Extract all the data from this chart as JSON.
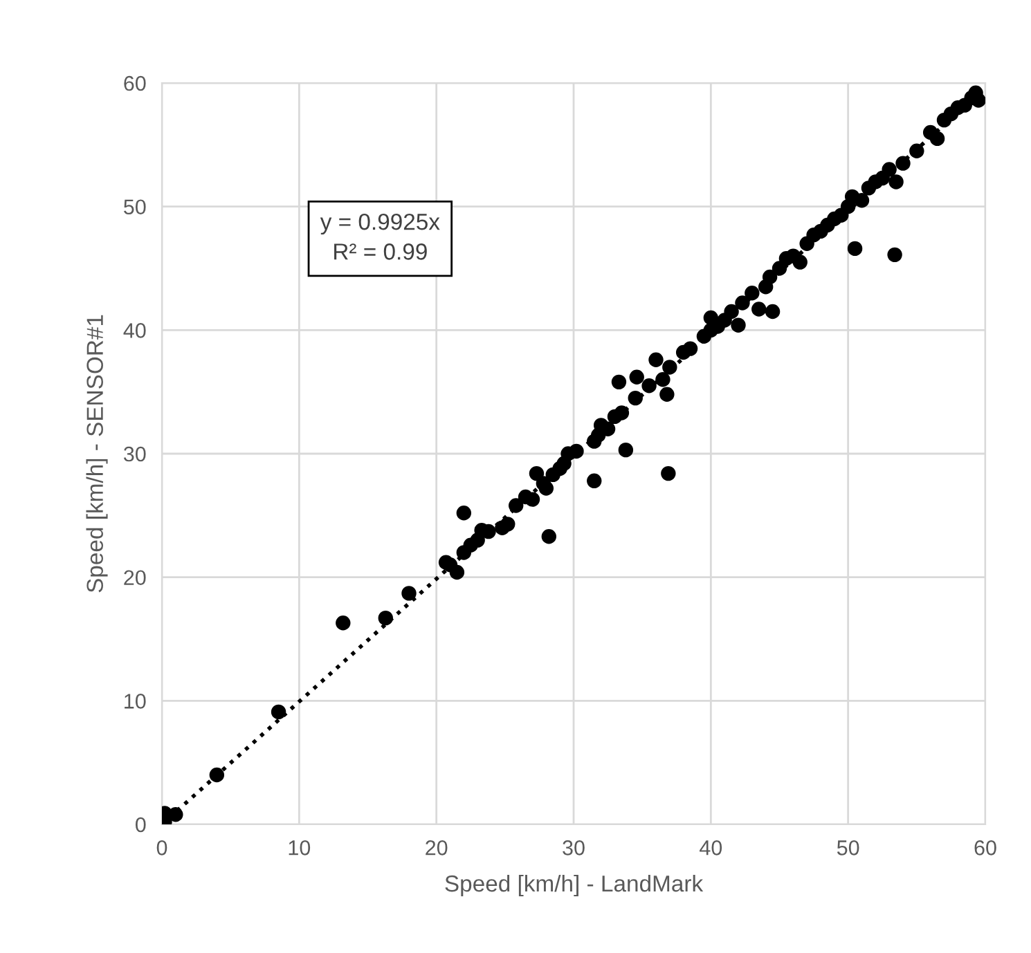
{
  "chart_data": {
    "type": "scatter",
    "xlabel": "Speed [km/h] - LandMark",
    "ylabel": "Speed [km/h] - SENSOR#1",
    "xlim": [
      0,
      60
    ],
    "ylim": [
      0,
      60
    ],
    "xticks": [
      0,
      10,
      20,
      30,
      40,
      50,
      60
    ],
    "yticks": [
      0,
      10,
      20,
      30,
      40,
      50,
      60
    ],
    "grid": true,
    "marker": "circle",
    "annotations": [
      "y = 0.9925x\nR² = 0.99"
    ],
    "series": [
      {
        "color": "#000000",
        "x": [
          0.2,
          0.2,
          1,
          4,
          8.5,
          13.2,
          16.3,
          18,
          20.7,
          21,
          21.5,
          22,
          22,
          22.5,
          23,
          23.3,
          23.8,
          24.8,
          25.2,
          25.8,
          26.5,
          27,
          27.3,
          27.8,
          28,
          28.2,
          28.5,
          29,
          29.3,
          29.6,
          30.2,
          31.5,
          31.5,
          31.8,
          32,
          32.5,
          33,
          33.3,
          33.5,
          33.8,
          34.5,
          34.6,
          35.5,
          36,
          36.5,
          36.8,
          36.9,
          37,
          38,
          38.5,
          39.5,
          40,
          40,
          40.5,
          41,
          41.5,
          42,
          42.3,
          43,
          43.5,
          44,
          44.5,
          44.3,
          45,
          45.5,
          46,
          46.5,
          47,
          47.5,
          48,
          48.5,
          49,
          49.5,
          50,
          50.3,
          50.5,
          51,
          51.5,
          52,
          52.5,
          53,
          53.4,
          53.5,
          54,
          55,
          56,
          56.5,
          57,
          57.5,
          58,
          58.5,
          59,
          59.3,
          59.5
        ],
        "values": [
          0.2,
          0.9,
          0.8,
          4,
          9.1,
          16.3,
          16.7,
          18.7,
          21.2,
          21,
          20.4,
          25.2,
          22,
          22.6,
          23,
          23.8,
          23.7,
          24,
          24.3,
          25.8,
          26.5,
          26.3,
          28.4,
          27.6,
          27.2,
          23.3,
          28.3,
          28.8,
          29.2,
          30,
          30.2,
          31,
          27.8,
          31.5,
          32.3,
          32,
          33,
          35.8,
          33.3,
          30.3,
          34.5,
          36.2,
          35.5,
          37.6,
          36,
          34.8,
          28.4,
          37,
          38.2,
          38.5,
          39.5,
          41,
          40,
          40.3,
          40.8,
          41.5,
          40.4,
          42.2,
          43,
          41.7,
          43.5,
          41.5,
          44.3,
          45,
          45.8,
          46,
          45.5,
          47,
          47.7,
          48,
          48.5,
          49,
          49.3,
          50,
          50.8,
          46.6,
          50.5,
          51.5,
          52,
          52.3,
          53,
          46.1,
          52,
          53.5,
          54.5,
          56,
          55.5,
          57,
          57.5,
          58,
          58.2,
          58.8,
          59.2,
          58.6
        ]
      },
      {
        "type": "line",
        "color": "#000000",
        "line_style": "dotted",
        "marker": "none",
        "x": [
          0,
          59.5
        ],
        "values": [
          0,
          59.1
        ]
      }
    ]
  }
}
